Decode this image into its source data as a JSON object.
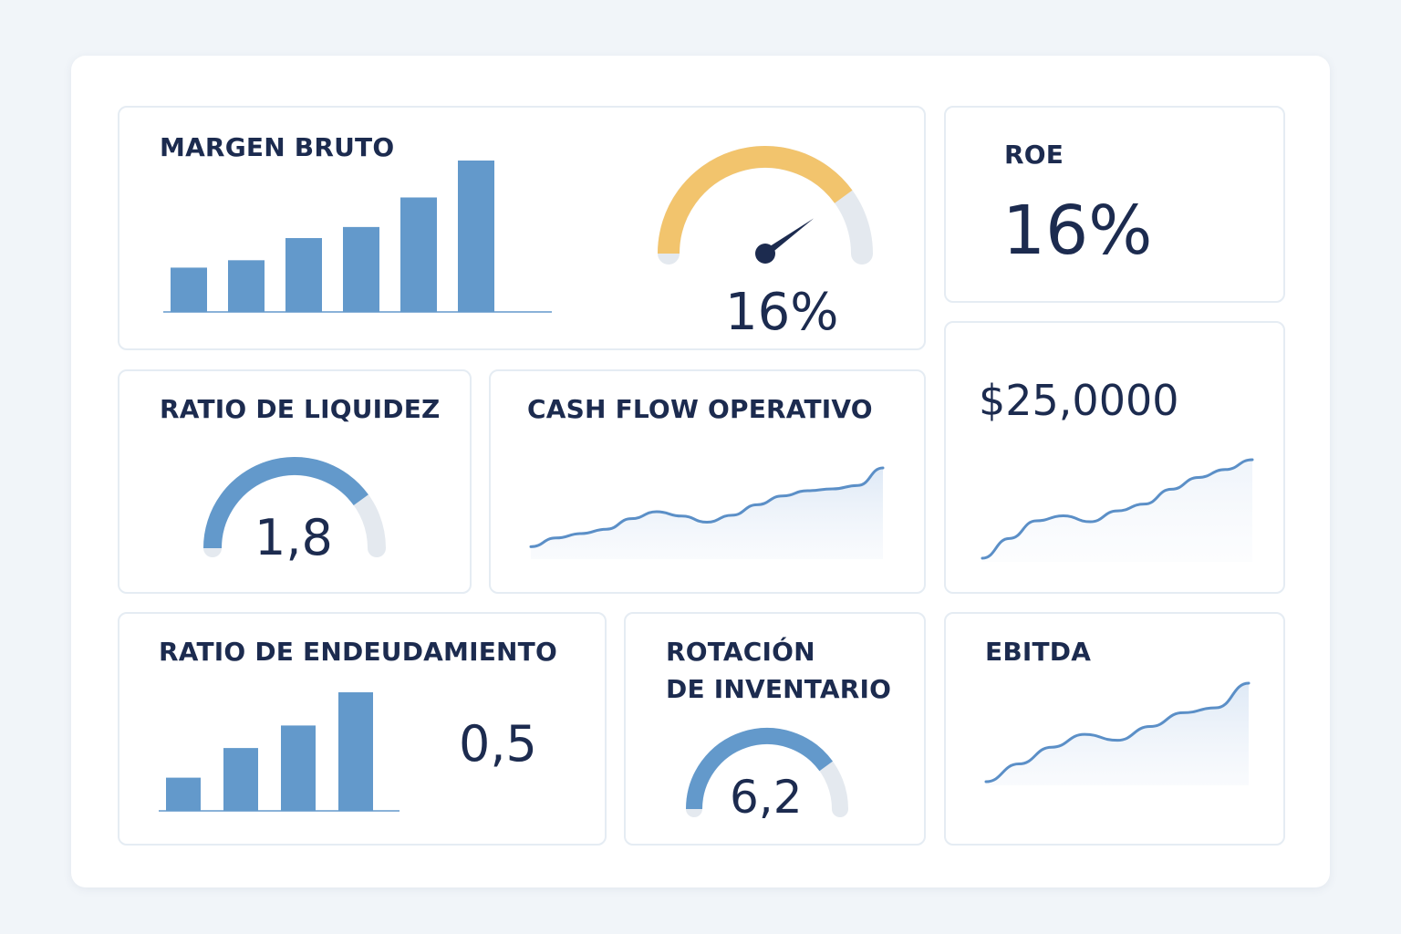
{
  "colors": {
    "accent_blue": "#6399cb",
    "gauge_yellow": "#f2c46d",
    "track_gray": "#e4e9ef",
    "text_dark": "#1c2b4f",
    "line_blue": "#5b8fc7"
  },
  "margen_bruto": {
    "title": "MARGEN BRUTO",
    "value": "16%",
    "gauge_fraction": 0.8,
    "bars": [
      24,
      28,
      40,
      46,
      62,
      82
    ]
  },
  "roe": {
    "title": "ROE",
    "value": "16%"
  },
  "ratio_liquidez": {
    "title": "RATIO DE LIQUIDEZ",
    "value": "1,8",
    "gauge_fraction": 0.8
  },
  "cash_flow": {
    "title": "CASH FLOW OPERATIVO",
    "series": [
      10,
      20,
      25,
      30,
      42,
      50,
      45,
      38,
      46,
      58,
      68,
      74,
      76,
      80,
      100
    ]
  },
  "cash_amount": {
    "value": "$25,0000",
    "series": [
      0,
      20,
      38,
      43,
      37,
      48,
      55,
      70,
      82,
      90,
      100
    ]
  },
  "ratio_endeudamiento": {
    "title": "RATIO DE ENDEUDAMIENTO",
    "value": "0,5",
    "bars": [
      28,
      53,
      72,
      100
    ]
  },
  "rotacion_inventario": {
    "title_line1": "ROTACIÓN",
    "title_line2": "DE INVENTARIO",
    "value": "6,2",
    "gauge_fraction": 0.8
  },
  "ebitda": {
    "title": "EBITDA",
    "series": [
      0,
      18,
      35,
      48,
      42,
      56,
      70,
      75,
      100
    ]
  }
}
